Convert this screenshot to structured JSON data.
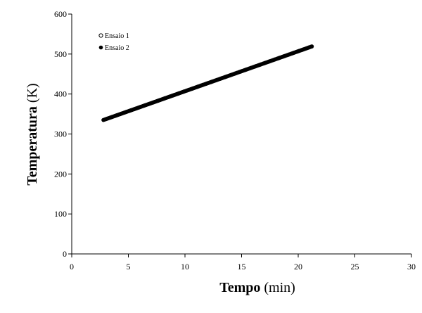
{
  "chart_data": {
    "type": "scatter",
    "title": "",
    "xlabel": "Tempo (min)",
    "xlabel_main": "Tempo",
    "xlabel_unit": "(min)",
    "ylabel": "Temperatura (K)",
    "ylabel_main": "Temperatura",
    "ylabel_unit": "(K)",
    "xlim": [
      0,
      30
    ],
    "ylim": [
      0,
      600
    ],
    "xticks": [
      0,
      5,
      10,
      15,
      20,
      25,
      30
    ],
    "yticks": [
      0,
      100,
      200,
      300,
      400,
      500,
      600
    ],
    "grid": false,
    "legend_position": "top-left",
    "series": [
      {
        "name": "Ensaio 1",
        "marker": "open-circle",
        "color": "#000000",
        "x": [],
        "y": []
      },
      {
        "name": "Ensaio 2",
        "marker": "filled-circle",
        "color": "#000000",
        "x_start": 2.8,
        "x_end": 21.2,
        "y_start": 335,
        "y_end": 519
      }
    ]
  }
}
